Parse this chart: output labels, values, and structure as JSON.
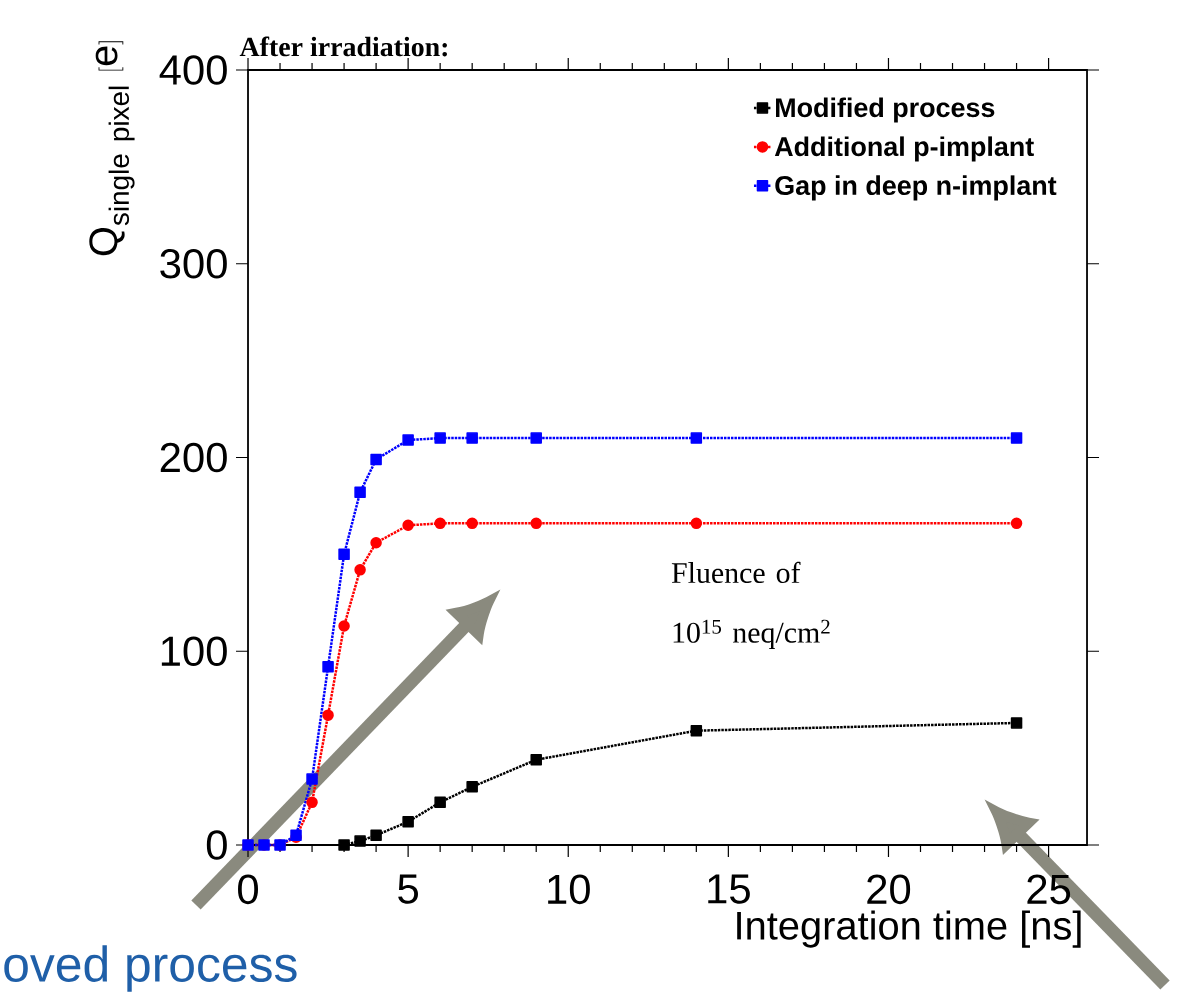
{
  "chart_data": {
    "type": "line",
    "title": "After irradiation:",
    "xlabel": "Integration time [ns]",
    "ylabel": "\\mathrm{Q}_{\\mathrm{single\\ pixel}}\\ [\\mathrm{e}]",
    "xlim": [
      0,
      26.2
    ],
    "ylim": [
      0,
      400
    ],
    "xticks": [
      0,
      5,
      10,
      15,
      20,
      25
    ],
    "yticks": [
      0,
      100,
      200,
      300,
      400
    ],
    "grid": false,
    "legend": "top right",
    "line_style": "dotted",
    "series": [
      {
        "name": "Modified process",
        "color": "#000000",
        "marker": "square",
        "x": [
          3,
          3.5,
          4,
          5,
          6,
          7,
          9,
          14,
          24
        ],
        "values": [
          0,
          2,
          5,
          12,
          22,
          30,
          44,
          59,
          63
        ]
      },
      {
        "name": "Additional p-implant",
        "color": "#ff0000",
        "marker": "circle",
        "x": [
          0,
          0.5,
          1,
          1.5,
          2,
          2.5,
          3,
          3.5,
          4,
          5,
          6,
          7,
          9,
          14,
          24
        ],
        "values": [
          0,
          0,
          0,
          4,
          22,
          67,
          113,
          142,
          156,
          165,
          166,
          166,
          166,
          166,
          166
        ]
      },
      {
        "name": "Gap in deep n-implant",
        "color": "#0000ff",
        "marker": "square",
        "x": [
          0,
          0.5,
          1,
          1.5,
          2,
          2.5,
          3,
          3.5,
          4,
          5,
          6,
          7,
          9,
          14,
          24
        ],
        "values": [
          0,
          0,
          0,
          5,
          34,
          92,
          150,
          182,
          199,
          209,
          210,
          210,
          210,
          210,
          210
        ]
      }
    ],
    "annotations": [
      "Fluence of 10$^{15}$ neq/cm$^{2}$",
      "oved process"
    ]
  }
}
